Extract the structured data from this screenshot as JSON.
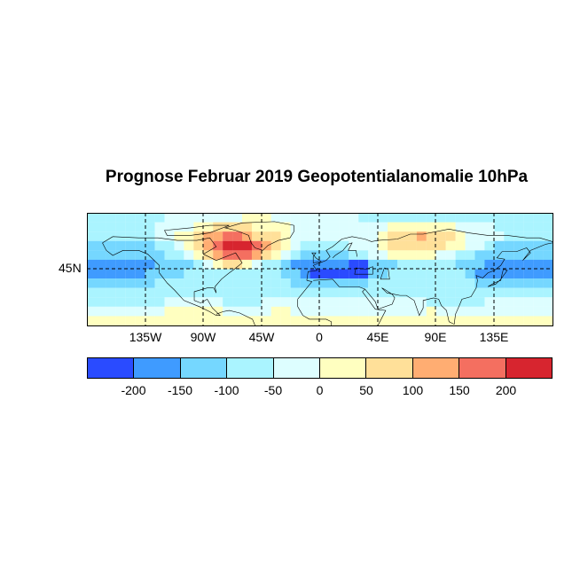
{
  "chart_data": {
    "type": "heatmap",
    "title": "Prognose Februar 2019 Geopotentialanomalie 10hPa",
    "xlabel": "",
    "ylabel": "",
    "x_ticks": [
      "135W",
      "90W",
      "45W",
      "0",
      "45E",
      "90E",
      "135E"
    ],
    "x_tick_values": [
      -135,
      -90,
      -45,
      0,
      45,
      90,
      135
    ],
    "y_ticks": [
      "45N"
    ],
    "y_tick_values": [
      45
    ],
    "lon_range": [
      -180,
      180
    ],
    "lat_range": [
      0,
      90
    ],
    "grid": "dashed at tick positions",
    "colorbar": {
      "levels": [
        -200,
        -150,
        -100,
        -50,
        0,
        50,
        100,
        150,
        200
      ],
      "labels": [
        "-200",
        "-150",
        "-100",
        "-50",
        "0",
        "50",
        "100",
        "150",
        "200"
      ],
      "colors": [
        "#2a4bff",
        "#3f9bff",
        "#75d7ff",
        "#aaf4ff",
        "#ddfeff",
        "#ffffc0",
        "#ffe099",
        "#ffad72",
        "#f46f60",
        "#d7252f"
      ]
    },
    "grid_resolution_deg": 7.5,
    "row_lat_centers": [
      86.25,
      78.75,
      71.25,
      63.75,
      56.25,
      48.75,
      41.25,
      33.75,
      26.25,
      18.75,
      11.25,
      3.75
    ],
    "rows": [
      "333333334444444455544444444433333333333333333333",
      "333333344445566665555444444444455555554444333333",
      "333333344556778876665444444444566676665444433333",
      "222222233456789998765433333444566666655443222222",
      "222222223345678887654322222334455555443322222222",
      "111111122223456654332111111002223333332221111111",
      "111111222233333333332210000002233333333211111111",
      "222222233333333333333222222223333333333322222222",
      "333333333333333333333333333333333333333333333333",
      "333333334444443333444444444444444443333334444444",
      "444444445555554444455444444444444445444444444444",
      "555555555555555555555555555555555555555555555555"
    ]
  }
}
